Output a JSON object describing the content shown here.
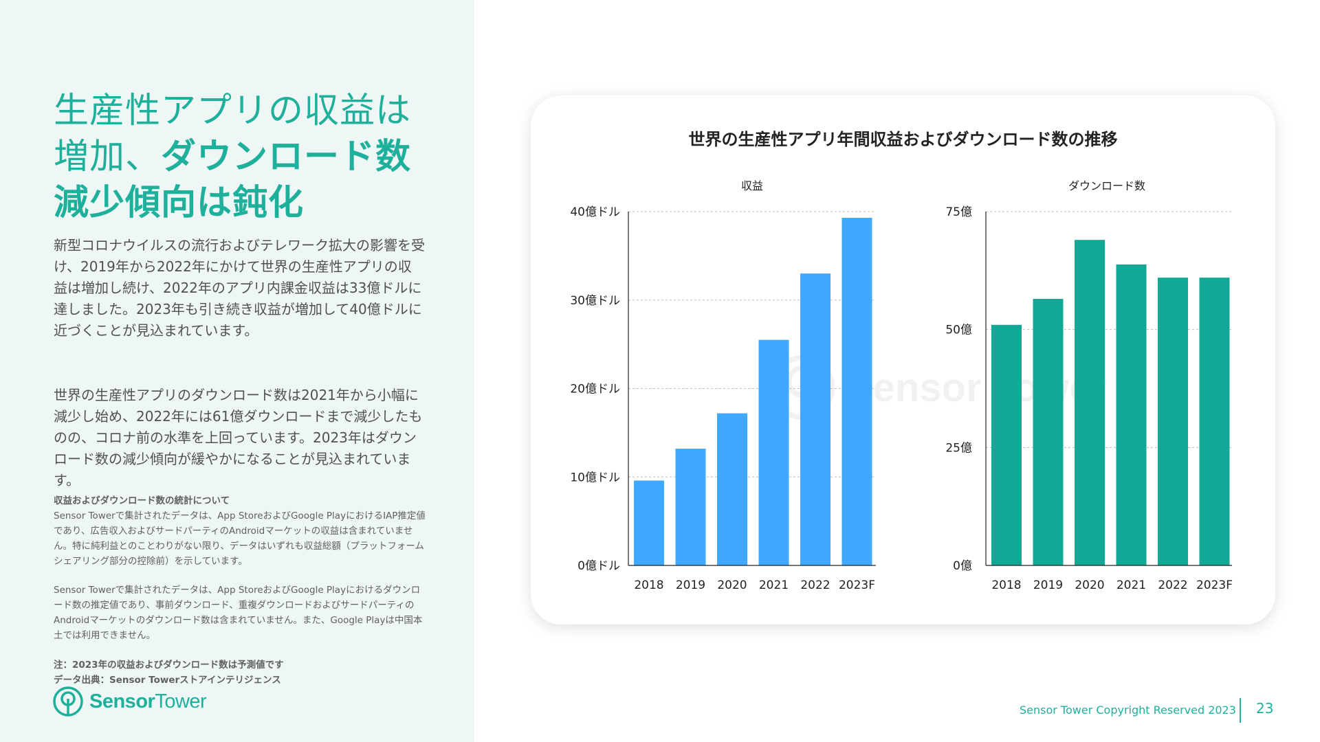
{
  "headline": {
    "line1": "生産性アプリの収益は",
    "line2_normal": "増加、",
    "line2_bold": "ダウンロード数",
    "line3_bold": "減少傾向は鈍化"
  },
  "body": {
    "paragraph1": "新型コロナウイルスの流行およびテレワーク拡大の影響を受け、2019年から2022年にかけて世界の生産性アプリの収益は増加し続け、2022年のアプリ内課金収益は33億ドルに達しました。2023年も引き続き収益が増加して40億ドルに近づくことが見込まれています。",
    "paragraph2": "世界の生産性アプリのダウンロード数は2021年から小幅に減少し始め、2022年には61億ダウンロードまで減少したものの、コロナ前の水準を上回っています。2023年はダウンロード数の減少傾向が緩やかになることが見込まれています。"
  },
  "notes": {
    "heading": "収益およびダウンロード数の統計について",
    "revenue_note": "Sensor Towerで集計されたデータは、App StoreおよびGoogle PlayにおけるIAP推定値であり、広告収入およびサードパーティのAndroidマーケットの収益は含まれていません。特に純利益とのことわりがない限り、データはいずれも収益総額（プラットフォームシェアリング部分の控除前）を示しています。",
    "download_note": "Sensor Towerで集計されたデータは、App StoreおよびGoogle Playにおけるダウンロード数の推定値であり、事前ダウンロード、重複ダウンロードおよびサードパーティのAndroidマーケットのダウンロード数は含まれていません。また、Google Playは中国本土では利用できません。",
    "footnote": "注：2023年の収益およびダウンロード数は予測値です",
    "source": "データ出典：Sensor Towerストアインテリジェンス"
  },
  "logo": {
    "word1": "Sensor",
    "word2": "Tower"
  },
  "footer": {
    "copyright": "Sensor Tower Copyright Reserved 2023",
    "page_number": "23"
  },
  "colors": {
    "brand": "#1fb09c",
    "revenue_bar": "#40a9ff",
    "download_bar": "#13a795",
    "left_panel_bg": "#eef7f6"
  },
  "chart_data": {
    "title": "世界の生産性アプリ年間収益およびダウンロード数の推移",
    "watermark": "Sensor Tower",
    "charts": [
      {
        "type": "bar",
        "subtitle": "収益",
        "categories": [
          "2018",
          "2019",
          "2020",
          "2021",
          "2022",
          "2023F"
        ],
        "values": [
          0.96,
          1.32,
          1.72,
          2.55,
          3.3,
          3.93
        ],
        "unit": "十億ドル",
        "yticks": [
          {
            "value": 0,
            "label": "0億ドル"
          },
          {
            "value": 1,
            "label": "10億ドル"
          },
          {
            "value": 2,
            "label": "20億ドル"
          },
          {
            "value": 3,
            "label": "30億ドル"
          },
          {
            "value": 4,
            "label": "40億ドル"
          }
        ],
        "ylim": [
          0,
          4
        ],
        "grid": true,
        "color": "#40a9ff"
      },
      {
        "type": "bar",
        "subtitle": "ダウンロード数",
        "categories": [
          "2018",
          "2019",
          "2020",
          "2021",
          "2022",
          "2023F"
        ],
        "values": [
          51,
          56.5,
          69,
          63.8,
          61,
          61
        ],
        "unit": "億",
        "yticks": [
          {
            "value": 0,
            "label": "0億"
          },
          {
            "value": 25,
            "label": "25億"
          },
          {
            "value": 50,
            "label": "50億"
          },
          {
            "value": 75,
            "label": "75億"
          }
        ],
        "ylim": [
          0,
          75
        ],
        "grid": true,
        "color": "#13a795"
      }
    ]
  }
}
